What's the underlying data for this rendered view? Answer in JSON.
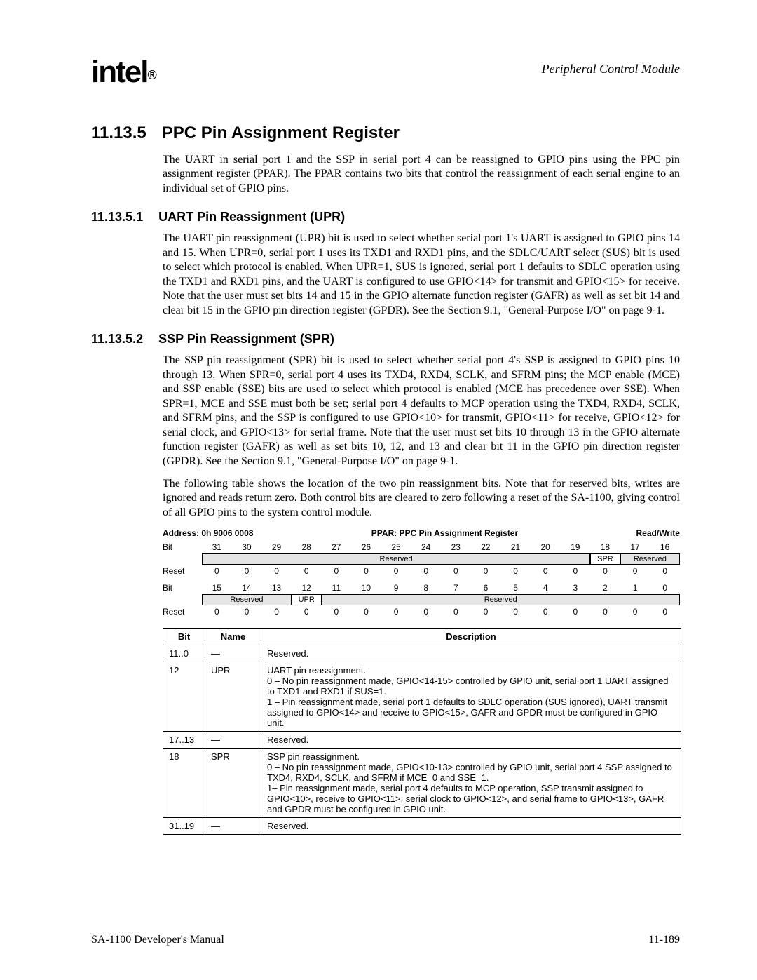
{
  "header": {
    "logo_text": "intel",
    "logo_reg": "®",
    "doc_title": "Peripheral Control Module"
  },
  "section": {
    "num": "11.13.5",
    "title": "PPC Pin Assignment Register",
    "intro": "The UART in serial port 1 and the SSP in serial port 4 can be reassigned to GPIO pins using the PPC pin assignment register (PPAR). The PPAR contains two bits that control the reassignment of each serial engine to an individual set of GPIO pins."
  },
  "sub1": {
    "num": "11.13.5.1",
    "title": "UART Pin Reassignment (UPR)",
    "para": "The UART pin reassignment (UPR) bit is used to select whether serial port 1's UART is assigned to GPIO pins 14 and 15. When UPR=0, serial port 1 uses its TXD1 and RXD1 pins, and the SDLC/UART select (SUS) bit is used to select which protocol is enabled. When UPR=1, SUS is ignored, serial port 1 defaults to SDLC operation using the TXD1 and RXD1 pins, and the UART is configured to use GPIO<14> for transmit and GPIO<15> for receive. Note that the user must set bits 14 and 15 in the GPIO alternate function register (GAFR) as well as set bit 14 and clear bit 15 in the GPIO pin direction register (GPDR). See the Section 9.1, \"General-Purpose I/O\" on page 9-1."
  },
  "sub2": {
    "num": "11.13.5.2",
    "title": "SSP Pin Reassignment (SPR)",
    "para1": "The SSP pin reassignment (SPR) bit is used to select whether serial port 4's SSP is assigned to GPIO pins 10 through 13. When SPR=0, serial port 4 uses its TXD4, RXD4, SCLK, and SFRM pins; the MCP enable (MCE) and SSP enable (SSE) bits are used to select which protocol is enabled (MCE has precedence over SSE). When SPR=1, MCE and SSE must both be set; serial port 4 defaults to MCP operation using the TXD4, RXD4, SCLK, and SFRM pins, and the SSP is configured to use GPIO<10> for transmit, GPIO<11> for receive, GPIO<12> for serial clock, and GPIO<13> for serial frame. Note that the user must set bits 10 through 13 in the GPIO alternate function register (GAFR) as well as set bits 10, 12, and 13 and clear bit 11 in the GPIO pin direction register (GPDR). See the Section 9.1, \"General-Purpose I/O\" on page 9-1.",
    "para2": "The following table shows the location of the two pin reassignment bits. Note that for reserved bits, writes are ignored and reads return zero. Both control bits are cleared to zero following a reset of the SA-1100, giving control of all GPIO pins to the system control module."
  },
  "register": {
    "address_label": "Address: 0h 9006 0008",
    "name": "PPAR: PPC Pin Assignment Register",
    "rw": "Read/Write",
    "row1": {
      "bits": [
        "31",
        "30",
        "29",
        "28",
        "27",
        "26",
        "25",
        "24",
        "23",
        "22",
        "21",
        "20",
        "19",
        "18",
        "17",
        "16"
      ],
      "fields": {
        "reserved_hi_label": "Reserved",
        "spr_label": "SPR",
        "reserved_17_16_label": "Reserved"
      },
      "reset": [
        "0",
        "0",
        "0",
        "0",
        "0",
        "0",
        "0",
        "0",
        "0",
        "0",
        "0",
        "0",
        "0",
        "0",
        "0",
        "0"
      ]
    },
    "row2": {
      "bits": [
        "15",
        "14",
        "13",
        "12",
        "11",
        "10",
        "9",
        "8",
        "7",
        "6",
        "5",
        "4",
        "3",
        "2",
        "1",
        "0"
      ],
      "fields": {
        "reserved_15_13_label": "Reserved",
        "upr_label": "UPR",
        "reserved_11_0_label": "Reserved"
      },
      "reset": [
        "0",
        "0",
        "0",
        "0",
        "0",
        "0",
        "0",
        "0",
        "0",
        "0",
        "0",
        "0",
        "0",
        "0",
        "0",
        "0"
      ]
    },
    "bit_label": "Bit",
    "reset_label": "Reset"
  },
  "desc_table": {
    "headers": {
      "bit": "Bit",
      "name": "Name",
      "desc": "Description"
    },
    "rows": [
      {
        "bit": "11..0",
        "name": "—",
        "desc": "Reserved."
      },
      {
        "bit": "12",
        "name": "UPR",
        "desc": "UART pin reassignment.\n0 – No pin reassignment made, GPIO<14-15> controlled by GPIO unit, serial port 1 UART assigned to TXD1 and RXD1 if SUS=1.\n1 – Pin reassignment made, serial port 1 defaults to SDLC operation (SUS ignored), UART transmit assigned to GPIO<14> and receive to GPIO<15>, GAFR and GPDR must be configured in GPIO unit."
      },
      {
        "bit": "17..13",
        "name": "—",
        "desc": "Reserved."
      },
      {
        "bit": "18",
        "name": "SPR",
        "desc": "SSP pin reassignment.\n0 – No pin reassignment made, GPIO<10-13> controlled by GPIO unit, serial port 4 SSP assigned to TXD4, RXD4, SCLK, and SFRM if MCE=0 and SSE=1.\n1– Pin reassignment made, serial port 4 defaults to MCP operation, SSP transmit assigned to GPIO<10>, receive to GPIO<11>, serial clock to GPIO<12>, and serial frame to GPIO<13>, GAFR and GPDR must be configured in GPIO unit."
      },
      {
        "bit": "31..19",
        "name": "—",
        "desc": "Reserved."
      }
    ]
  },
  "footer": {
    "left": "SA-1100 Developer's Manual",
    "right": "11-189"
  }
}
